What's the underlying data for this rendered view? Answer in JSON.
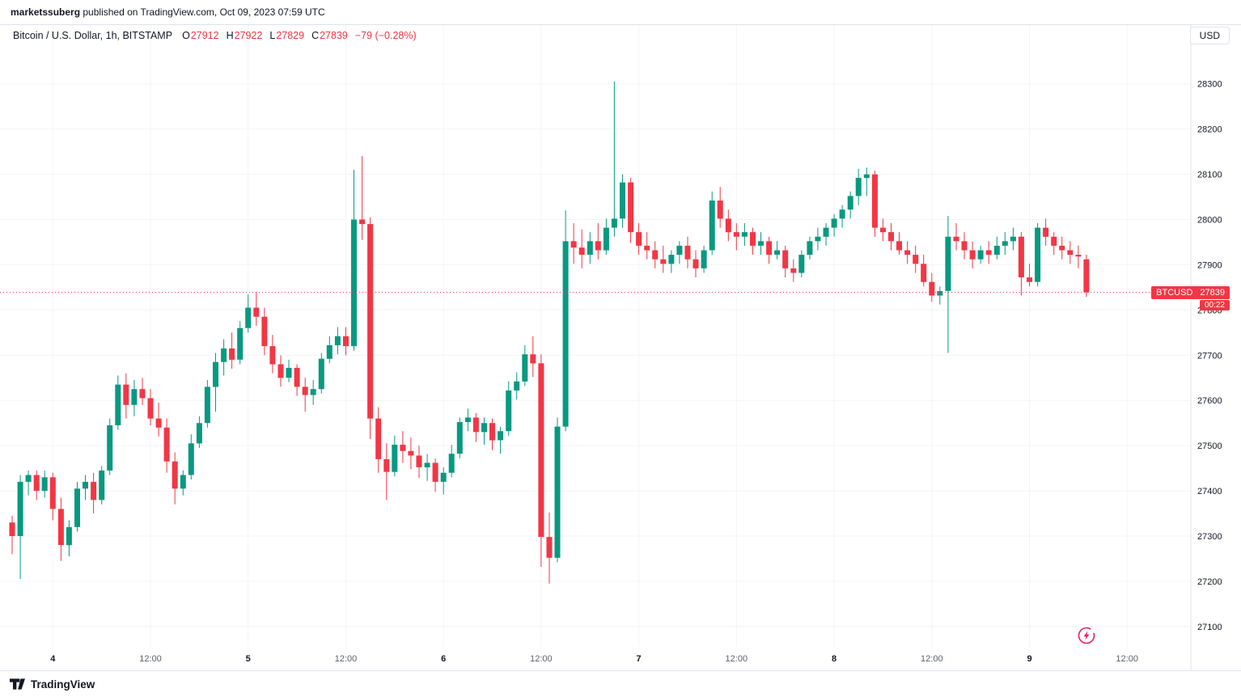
{
  "attribution": {
    "user": "marketssuberg",
    "rest": " published on TradingView.com, Oct 09, 2023 07:59 UTC"
  },
  "header": {
    "symbol_title": "Bitcoin / U.S. Dollar, 1h, BITSTAMP",
    "ohlc": {
      "o_label": "O",
      "o": "27912",
      "h_label": "H",
      "h": "27922",
      "l_label": "L",
      "l": "27829",
      "c_label": "C",
      "c": "27839",
      "change": "−79 (−0.28%)"
    },
    "currency_button": "USD"
  },
  "price_label": {
    "symbol": "BTCUSD",
    "price": "27839",
    "countdown": "00:22"
  },
  "footer": {
    "logo_text": "TradingView"
  },
  "colors": {
    "up": "#089981",
    "down": "#F23645",
    "grid": "#f2f4f7",
    "axis_line": "#e0e3eb",
    "text": "#131722",
    "muted_text": "#5d606b",
    "badge_bg": "#F23645",
    "flash": "#e91e63"
  },
  "chart_data": {
    "type": "candlestick",
    "symbol": "BTCUSD",
    "exchange": "BITSTAMP",
    "interval": "1h",
    "start_time": "2023-10-03 19:00 UTC",
    "current_price": 27839,
    "ylim": [
      27055,
      28430
    ],
    "y_ticks": [
      28300,
      28200,
      28100,
      28000,
      27900,
      27800,
      27700,
      27600,
      27500,
      27400,
      27300,
      27200,
      27100
    ],
    "x_ticks": [
      {
        "i": 5,
        "label": "4",
        "major": true
      },
      {
        "i": 17,
        "label": "12:00",
        "major": false
      },
      {
        "i": 29,
        "label": "5",
        "major": true
      },
      {
        "i": 41,
        "label": "12:00",
        "major": false
      },
      {
        "i": 53,
        "label": "6",
        "major": true
      },
      {
        "i": 65,
        "label": "12:00",
        "major": false
      },
      {
        "i": 77,
        "label": "7",
        "major": true
      },
      {
        "i": 89,
        "label": "12:00",
        "major": false
      },
      {
        "i": 101,
        "label": "8",
        "major": true
      },
      {
        "i": 113,
        "label": "12:00",
        "major": false
      },
      {
        "i": 125,
        "label": "9",
        "major": true
      },
      {
        "i": 137,
        "label": "12:00",
        "major": false
      }
    ],
    "candle_format": [
      "open",
      "high",
      "low",
      "close"
    ],
    "candles": [
      [
        27330,
        27345,
        27260,
        27300
      ],
      [
        27300,
        27435,
        27205,
        27420
      ],
      [
        27420,
        27445,
        27390,
        27435
      ],
      [
        27435,
        27445,
        27380,
        27400
      ],
      [
        27400,
        27445,
        27385,
        27430
      ],
      [
        27430,
        27440,
        27335,
        27360
      ],
      [
        27360,
        27385,
        27245,
        27280
      ],
      [
        27280,
        27335,
        27255,
        27320
      ],
      [
        27320,
        27420,
        27310,
        27405
      ],
      [
        27405,
        27435,
        27380,
        27420
      ],
      [
        27420,
        27440,
        27350,
        27380
      ],
      [
        27380,
        27455,
        27370,
        27445
      ],
      [
        27445,
        27560,
        27435,
        27545
      ],
      [
        27545,
        27655,
        27535,
        27635
      ],
      [
        27635,
        27660,
        27560,
        27590
      ],
      [
        27590,
        27645,
        27565,
        27625
      ],
      [
        27625,
        27650,
        27590,
        27605
      ],
      [
        27605,
        27625,
        27545,
        27560
      ],
      [
        27560,
        27595,
        27520,
        27540
      ],
      [
        27540,
        27560,
        27440,
        27465
      ],
      [
        27465,
        27485,
        27370,
        27405
      ],
      [
        27405,
        27445,
        27390,
        27435
      ],
      [
        27435,
        27525,
        27425,
        27505
      ],
      [
        27505,
        27565,
        27495,
        27550
      ],
      [
        27550,
        27645,
        27540,
        27630
      ],
      [
        27630,
        27705,
        27575,
        27685
      ],
      [
        27685,
        27735,
        27655,
        27715
      ],
      [
        27715,
        27750,
        27670,
        27690
      ],
      [
        27690,
        27775,
        27680,
        27760
      ],
      [
        27760,
        27835,
        27750,
        27805
      ],
      [
        27805,
        27840,
        27765,
        27785
      ],
      [
        27785,
        27805,
        27700,
        27720
      ],
      [
        27720,
        27745,
        27660,
        27680
      ],
      [
        27680,
        27700,
        27630,
        27650
      ],
      [
        27650,
        27690,
        27640,
        27672
      ],
      [
        27672,
        27680,
        27610,
        27630
      ],
      [
        27630,
        27650,
        27575,
        27612
      ],
      [
        27612,
        27645,
        27590,
        27625
      ],
      [
        27625,
        27705,
        27615,
        27692
      ],
      [
        27692,
        27742,
        27682,
        27722
      ],
      [
        27722,
        27762,
        27702,
        27742
      ],
      [
        27742,
        27762,
        27700,
        27720
      ],
      [
        27720,
        28110,
        27710,
        28000
      ],
      [
        28000,
        28140,
        27955,
        27990
      ],
      [
        27990,
        28005,
        27515,
        27560
      ],
      [
        27560,
        27585,
        27440,
        27470
      ],
      [
        27470,
        27505,
        27380,
        27442
      ],
      [
        27442,
        27522,
        27432,
        27502
      ],
      [
        27502,
        27532,
        27462,
        27488
      ],
      [
        27488,
        27518,
        27448,
        27478
      ],
      [
        27478,
        27500,
        27428,
        27452
      ],
      [
        27452,
        27482,
        27422,
        27462
      ],
      [
        27462,
        27472,
        27398,
        27420
      ],
      [
        27420,
        27452,
        27392,
        27440
      ],
      [
        27440,
        27502,
        27430,
        27482
      ],
      [
        27482,
        27562,
        27472,
        27552
      ],
      [
        27552,
        27582,
        27532,
        27562
      ],
      [
        27562,
        27572,
        27508,
        27530
      ],
      [
        27530,
        27562,
        27502,
        27550
      ],
      [
        27550,
        27560,
        27490,
        27512
      ],
      [
        27512,
        27542,
        27482,
        27532
      ],
      [
        27532,
        27642,
        27522,
        27622
      ],
      [
        27622,
        27662,
        27602,
        27642
      ],
      [
        27642,
        27722,
        27632,
        27702
      ],
      [
        27702,
        27742,
        27652,
        27682
      ],
      [
        27682,
        27702,
        27232,
        27298
      ],
      [
        27298,
        27352,
        27195,
        27252
      ],
      [
        27252,
        27562,
        27242,
        27542
      ],
      [
        27542,
        28020,
        27532,
        27952
      ],
      [
        27952,
        27992,
        27902,
        27938
      ],
      [
        27938,
        27978,
        27892,
        27922
      ],
      [
        27922,
        27972,
        27902,
        27952
      ],
      [
        27952,
        27992,
        27912,
        27932
      ],
      [
        27932,
        28002,
        27922,
        27982
      ],
      [
        27982,
        28305,
        27962,
        28002
      ],
      [
        28002,
        28100,
        27982,
        28082
      ],
      [
        28082,
        28092,
        27948,
        27972
      ],
      [
        27972,
        27992,
        27922,
        27942
      ],
      [
        27942,
        27972,
        27912,
        27932
      ],
      [
        27932,
        27952,
        27892,
        27912
      ],
      [
        27912,
        27942,
        27882,
        27902
      ],
      [
        27902,
        27932,
        27882,
        27922
      ],
      [
        27922,
        27952,
        27902,
        27942
      ],
      [
        27942,
        27962,
        27892,
        27912
      ],
      [
        27912,
        27932,
        27872,
        27892
      ],
      [
        27892,
        27942,
        27882,
        27932
      ],
      [
        27932,
        28062,
        27922,
        28042
      ],
      [
        28042,
        28072,
        27982,
        28002
      ],
      [
        28002,
        28022,
        27952,
        27972
      ],
      [
        27972,
        27992,
        27932,
        27962
      ],
      [
        27962,
        27992,
        27942,
        27972
      ],
      [
        27972,
        27982,
        27922,
        27942
      ],
      [
        27942,
        27972,
        27922,
        27952
      ],
      [
        27952,
        27962,
        27902,
        27922
      ],
      [
        27922,
        27952,
        27912,
        27932
      ],
      [
        27932,
        27942,
        27872,
        27892
      ],
      [
        27892,
        27912,
        27862,
        27882
      ],
      [
        27882,
        27932,
        27872,
        27922
      ],
      [
        27922,
        27962,
        27912,
        27952
      ],
      [
        27952,
        27982,
        27932,
        27962
      ],
      [
        27962,
        27992,
        27942,
        27982
      ],
      [
        27982,
        28012,
        27962,
        28002
      ],
      [
        28002,
        28032,
        27982,
        28022
      ],
      [
        28022,
        28062,
        28002,
        28052
      ],
      [
        28052,
        28112,
        28032,
        28092
      ],
      [
        28092,
        28115,
        28052,
        28100
      ],
      [
        28100,
        28108,
        27962,
        27982
      ],
      [
        27982,
        28002,
        27952,
        27972
      ],
      [
        27972,
        27992,
        27932,
        27952
      ],
      [
        27952,
        27972,
        27922,
        27932
      ],
      [
        27932,
        27952,
        27902,
        27922
      ],
      [
        27922,
        27942,
        27882,
        27902
      ],
      [
        27902,
        27922,
        27852,
        27862
      ],
      [
        27862,
        27882,
        27818,
        27832
      ],
      [
        27832,
        27852,
        27812,
        27842
      ],
      [
        27842,
        28008,
        27705,
        27962
      ],
      [
        27962,
        27992,
        27932,
        27952
      ],
      [
        27952,
        27972,
        27912,
        27932
      ],
      [
        27932,
        27952,
        27892,
        27912
      ],
      [
        27912,
        27942,
        27902,
        27932
      ],
      [
        27932,
        27952,
        27902,
        27922
      ],
      [
        27922,
        27962,
        27912,
        27942
      ],
      [
        27942,
        27972,
        27922,
        27952
      ],
      [
        27952,
        27982,
        27932,
        27962
      ],
      [
        27962,
        27972,
        27832,
        27872
      ],
      [
        27872,
        27902,
        27852,
        27862
      ],
      [
        27862,
        27992,
        27852,
        27982
      ],
      [
        27982,
        28002,
        27942,
        27962
      ],
      [
        27962,
        27972,
        27922,
        27942
      ],
      [
        27942,
        27962,
        27912,
        27932
      ],
      [
        27932,
        27952,
        27902,
        27922
      ],
      [
        27922,
        27942,
        27892,
        27918
      ],
      [
        27912,
        27922,
        27829,
        27839
      ]
    ]
  }
}
